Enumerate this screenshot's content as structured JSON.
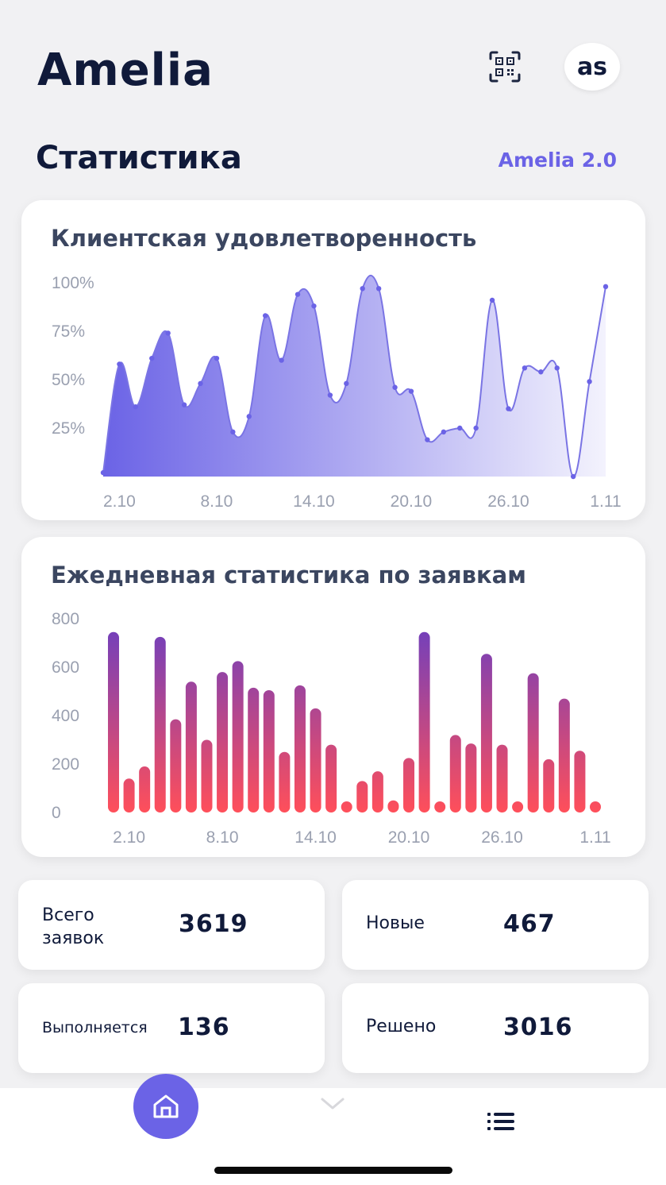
{
  "header": {
    "app_title": "Amelia",
    "avatar_initials": "as",
    "qr_icon": "qr-scan-icon"
  },
  "page": {
    "title": "Статистика",
    "version_link": "Amelia 2.0"
  },
  "colors": {
    "accent": "#6b63e6",
    "bar_top": "#6b3fc0",
    "bar_bottom": "#ff4f5a",
    "text_dark": "#101a3a"
  },
  "chart_data": [
    {
      "type": "area",
      "title": "Клиентская удовлетворенность",
      "xlabel": "",
      "ylabel": "",
      "y_ticks": [
        "100%",
        "75%",
        "50%",
        "25%"
      ],
      "y_tick_values": [
        100,
        75,
        50,
        25
      ],
      "x_ticks": [
        "2.10",
        "8.10",
        "14.10",
        "20.10",
        "26.10",
        "1.11"
      ],
      "x_tick_index": [
        1,
        7,
        13,
        19,
        25,
        31
      ],
      "ylim": [
        0,
        100
      ],
      "grid": false,
      "values": [
        2,
        58,
        36,
        61,
        74,
        37,
        48,
        61,
        23,
        31,
        83,
        60,
        94,
        88,
        42,
        48,
        97,
        97,
        46,
        44,
        19,
        23,
        25,
        25,
        91,
        35,
        56,
        54,
        56,
        0,
        49,
        98
      ]
    },
    {
      "type": "bar",
      "title": "Ежедневная статистика по заявкам",
      "xlabel": "",
      "ylabel": "",
      "y_ticks": [
        "800",
        "600",
        "400",
        "200",
        "0"
      ],
      "y_tick_values": [
        800,
        600,
        400,
        200,
        0
      ],
      "x_ticks": [
        "2.10",
        "8.10",
        "14.10",
        "20.10",
        "26.10",
        "1.11"
      ],
      "x_tick_index": [
        1,
        7,
        13,
        19,
        25,
        31
      ],
      "ylim": [
        0,
        800
      ],
      "grid": false,
      "values": [
        745,
        140,
        190,
        725,
        385,
        540,
        300,
        580,
        625,
        515,
        505,
        250,
        525,
        430,
        280,
        35,
        130,
        170,
        50,
        225,
        745,
        35,
        320,
        285,
        655,
        280,
        35,
        575,
        220,
        470,
        255,
        30
      ]
    }
  ],
  "stats": [
    {
      "label_line1": "Всего",
      "label_line2": "заявок",
      "value": "3619"
    },
    {
      "label": "Новые",
      "value": "467"
    },
    {
      "label": "Выполняется",
      "value": "136"
    },
    {
      "label": "Решено",
      "value": "3016"
    }
  ],
  "nav": {
    "home_icon": "home-icon",
    "chevron_icon": "chevron-down-icon",
    "list_icon": "list-icon"
  }
}
